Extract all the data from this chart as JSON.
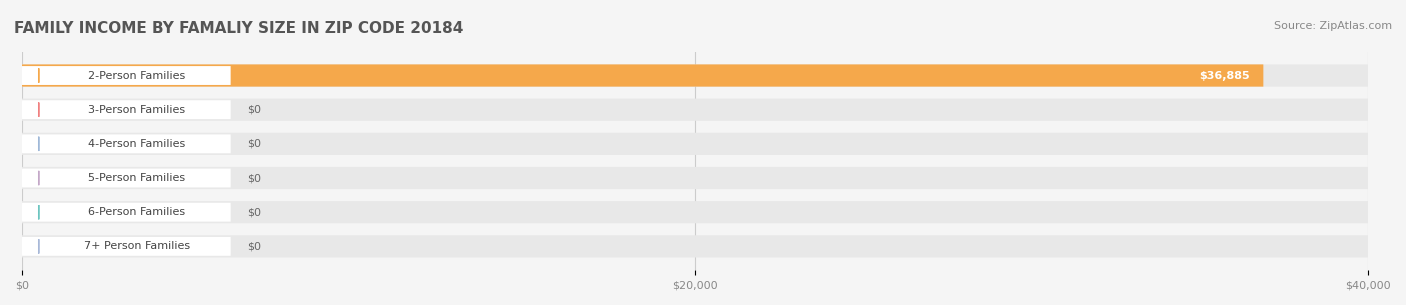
{
  "title": "FAMILY INCOME BY FAMALIY SIZE IN ZIP CODE 20184",
  "source": "Source: ZipAtlas.com",
  "categories": [
    "2-Person Families",
    "3-Person Families",
    "4-Person Families",
    "5-Person Families",
    "6-Person Families",
    "7+ Person Families"
  ],
  "values": [
    36885,
    0,
    0,
    0,
    0,
    0
  ],
  "bar_colors": [
    "#F5A84B",
    "#F08080",
    "#9FB8D8",
    "#C4A8C8",
    "#6DC5C0",
    "#A8B8D8"
  ],
  "label_colors": [
    "#F5A84B",
    "#F08080",
    "#9FB8D8",
    "#C4A8C8",
    "#6DC5C0",
    "#A8B8D8"
  ],
  "xlim": [
    0,
    40000
  ],
  "xticks": [
    0,
    20000,
    40000
  ],
  "xticklabels": [
    "$0",
    "$20,000",
    "$40,000"
  ],
  "value_labels": [
    "$36,885",
    "$0",
    "$0",
    "$0",
    "$0",
    "$0"
  ],
  "background_color": "#f5f5f5",
  "bar_bg_color": "#e8e8e8",
  "title_color": "#555555",
  "source_color": "#888888",
  "bar_height": 0.65,
  "title_fontsize": 11,
  "source_fontsize": 8,
  "label_fontsize": 8,
  "value_fontsize": 8
}
